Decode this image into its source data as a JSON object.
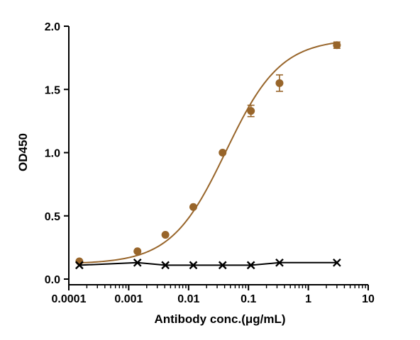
{
  "chart_data": {
    "type": "scatter",
    "title": "",
    "xlabel": "Antibody conc.(μg/mL)",
    "ylabel": "OD450",
    "xscale": "log",
    "xlim": [
      0.0001,
      10
    ],
    "ylim": [
      0,
      2.0
    ],
    "x_ticks": [
      {
        "value": 0.0001,
        "label": "0.0001"
      },
      {
        "value": 0.001,
        "label": "0.001"
      },
      {
        "value": 0.01,
        "label": "0.01"
      },
      {
        "value": 0.1,
        "label": "0.1"
      },
      {
        "value": 1,
        "label": "1"
      },
      {
        "value": 10,
        "label": "10"
      }
    ],
    "y_ticks": [
      {
        "value": 0.0,
        "label": "0.0"
      },
      {
        "value": 0.5,
        "label": "0.5"
      },
      {
        "value": 1.0,
        "label": "1.0"
      },
      {
        "value": 1.5,
        "label": "1.5"
      },
      {
        "value": 2.0,
        "label": "2.0"
      }
    ],
    "grid": false,
    "legend": "none",
    "series": [
      {
        "marker": "circle",
        "color": "#98652A",
        "fit": "4PL",
        "x": [
          0.00015,
          0.0014,
          0.0041,
          0.012,
          0.037,
          0.11,
          0.33,
          3.0
        ],
        "y": [
          0.14,
          0.22,
          0.35,
          0.57,
          1.0,
          1.33,
          1.55,
          1.85
        ],
        "err": [
          0.005,
          0.005,
          0.005,
          0.01,
          0.005,
          0.045,
          0.065,
          0.025
        ]
      },
      {
        "marker": "x",
        "color": "#000000",
        "x": [
          0.00015,
          0.0014,
          0.0041,
          0.012,
          0.037,
          0.11,
          0.33,
          3.0
        ],
        "y": [
          0.11,
          0.13,
          0.11,
          0.11,
          0.11,
          0.11,
          0.13,
          0.13
        ]
      }
    ]
  }
}
